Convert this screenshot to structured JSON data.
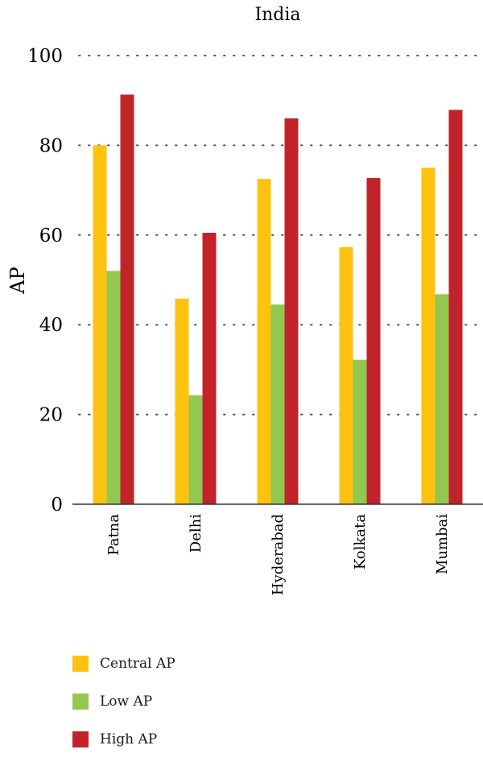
{
  "chart_data": {
    "type": "bar",
    "title": "India",
    "ylabel": "AP",
    "xlabel": "",
    "ylim": [
      0,
      100
    ],
    "yticks": [
      0,
      20,
      40,
      60,
      80,
      100
    ],
    "grid": "dotted horizontal",
    "categories": [
      "Patna",
      "Delhi",
      "Hyderabad",
      "Kolkata",
      "Mumbai"
    ],
    "series": [
      {
        "name": "Central AP",
        "color": "#FFC20E",
        "values": [
          80,
          45.8,
          72.5,
          57.3,
          75
        ]
      },
      {
        "name": "Low AP",
        "color": "#92C850",
        "values": [
          52,
          24.3,
          44.5,
          32.2,
          46.8
        ]
      },
      {
        "name": "High AP",
        "color": "#C1232B",
        "values": [
          91.3,
          60.5,
          86,
          72.7,
          87.9
        ]
      }
    ],
    "legend_position": "bottom-left"
  }
}
